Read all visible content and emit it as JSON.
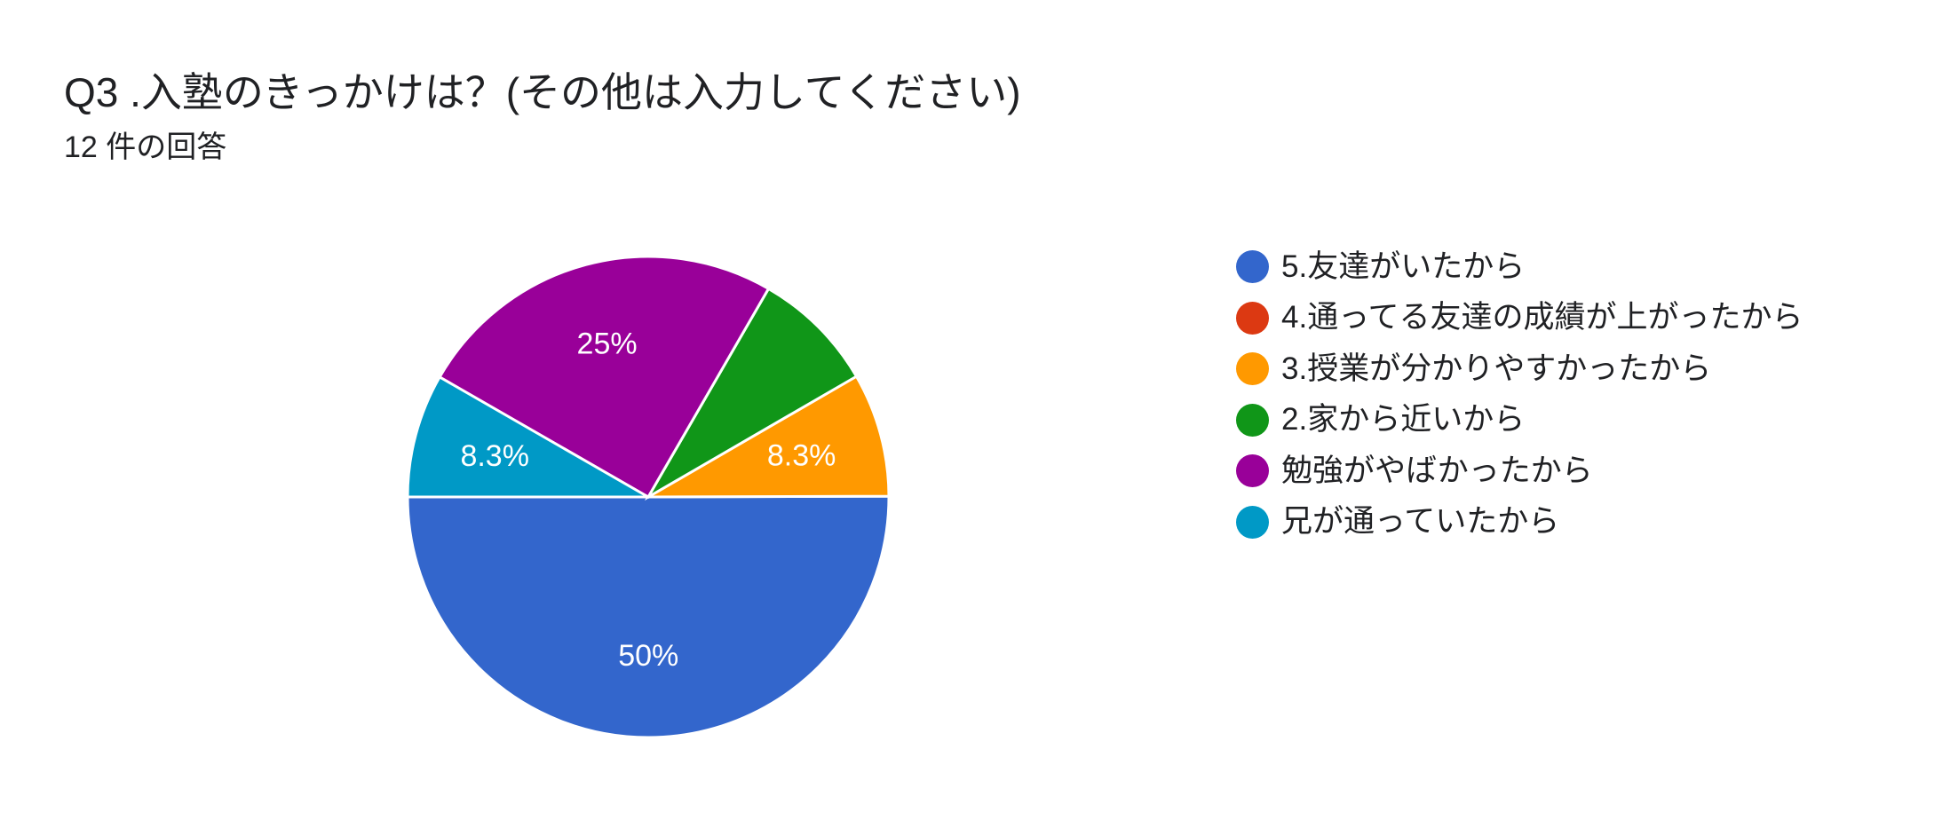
{
  "header": {
    "title": "Q3 .入塾のきっかけは？(その他は入力してください)",
    "subtitle": "12 件の回答"
  },
  "chart_data": {
    "type": "pie",
    "slices": [
      {
        "label": "5.友達がいたから",
        "value": 50,
        "display": "50%",
        "color": "#3366cc"
      },
      {
        "label": "4.通ってる友達の成績が上がったから",
        "value": 0,
        "display": "",
        "color": "#dc3912"
      },
      {
        "label": "3.授業が分かりやすかったから",
        "value": 8.3,
        "display": "8.3%",
        "color": "#ff9900"
      },
      {
        "label": "2.家から近いから",
        "value": 8.3,
        "display": "",
        "color": "#109618"
      },
      {
        "label": "勉強がやばかったから",
        "value": 25,
        "display": "25%",
        "color": "#990099"
      },
      {
        "label": "兄が通っていたから",
        "value": 8.3,
        "display": "8.3%",
        "color": "#0099c6"
      }
    ],
    "legend_position": "right"
  }
}
